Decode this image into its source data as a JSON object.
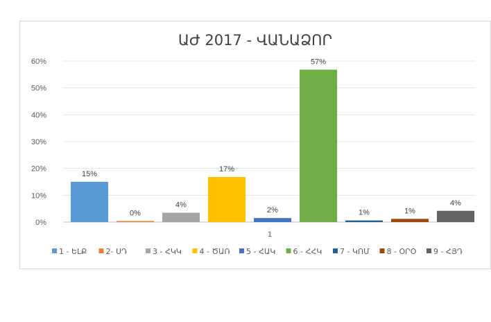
{
  "chart_data": {
    "type": "bar",
    "title": "ԱԺ 2017 - ՎԱՆԱՁՈՐ",
    "categories": [
      "1"
    ],
    "ylim": [
      0,
      60
    ],
    "yticks": [
      "0%",
      "10%",
      "20%",
      "30%",
      "40%",
      "50%",
      "60%"
    ],
    "grid": true,
    "legend_position": "bottom",
    "series": [
      {
        "name": "1 - ԵԼՔ",
        "value": 15,
        "label": "15%",
        "color": "#5b9bd5"
      },
      {
        "name": "2- ՍԴ",
        "value": 0.3,
        "label": "0%",
        "color": "#ed7d31"
      },
      {
        "name": "3 - ՀԿԿ",
        "value": 3.5,
        "label": "4%",
        "color": "#a5a5a5"
      },
      {
        "name": "4 - ԾԱՌ",
        "value": 16.8,
        "label": "17%",
        "color": "#ffc000"
      },
      {
        "name": "5 - ՀԱԿ",
        "value": 1.5,
        "label": "2%",
        "color": "#4472c4"
      },
      {
        "name": "6 - ՀՀԿ",
        "value": 56.8,
        "label": "57%",
        "color": "#70ad47"
      },
      {
        "name": "7 - ԿՈՄ",
        "value": 0.6,
        "label": "1%",
        "color": "#255e91"
      },
      {
        "name": "8 - ՕՐՕ",
        "value": 1.2,
        "label": "1%",
        "color": "#9e480e"
      },
      {
        "name": "9 - ՀՅԴ",
        "value": 4.2,
        "label": "4%",
        "color": "#636363"
      }
    ]
  }
}
